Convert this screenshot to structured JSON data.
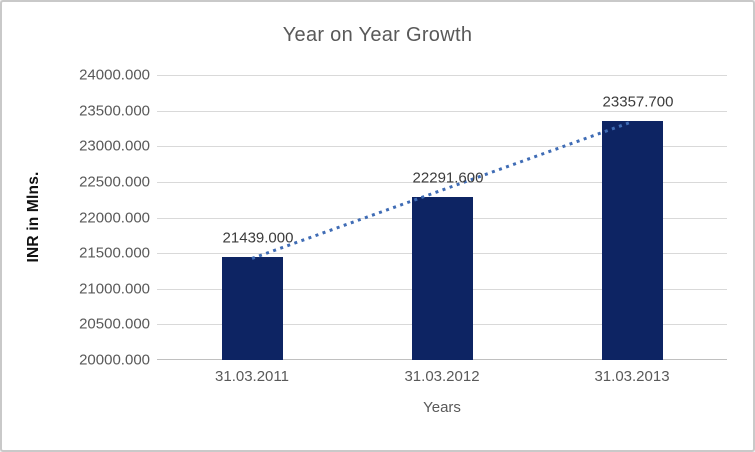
{
  "chart_data": {
    "type": "bar",
    "title": "Year on Year Growth",
    "xlabel": "Years",
    "ylabel": "INR in Mlns.",
    "categories": [
      "31.03.2011",
      "31.03.2012",
      "31.03.2013"
    ],
    "values": [
      21439.0,
      22291.6,
      23357.7
    ],
    "data_labels": [
      "21439.000",
      "22291.600",
      "23357.700"
    ],
    "ylim": [
      20000,
      24000
    ],
    "ytick_values": [
      20000,
      20500,
      21000,
      21500,
      22000,
      22500,
      23000,
      23500,
      24000
    ],
    "ytick_labels": [
      "20000.000",
      "20500.000",
      "21000.000",
      "21500.000",
      "22000.000",
      "22500.000",
      "23000.000",
      "23500.000",
      "24000.000"
    ],
    "grid": true,
    "legend": "none",
    "trendline": {
      "type": "linear",
      "style": "dotted",
      "color": "#3f6cb5",
      "from_index": 0,
      "to_index": 2
    },
    "colors": {
      "bar": "#0d2463",
      "gridline": "#d9d9d9",
      "axis_line": "#c0c0c0",
      "title_text": "#595959",
      "tick_text": "#595959",
      "data_label_text": "#3b3b3b",
      "axis_title_text": "#111111",
      "frame_border": "#c9c9c9"
    }
  }
}
